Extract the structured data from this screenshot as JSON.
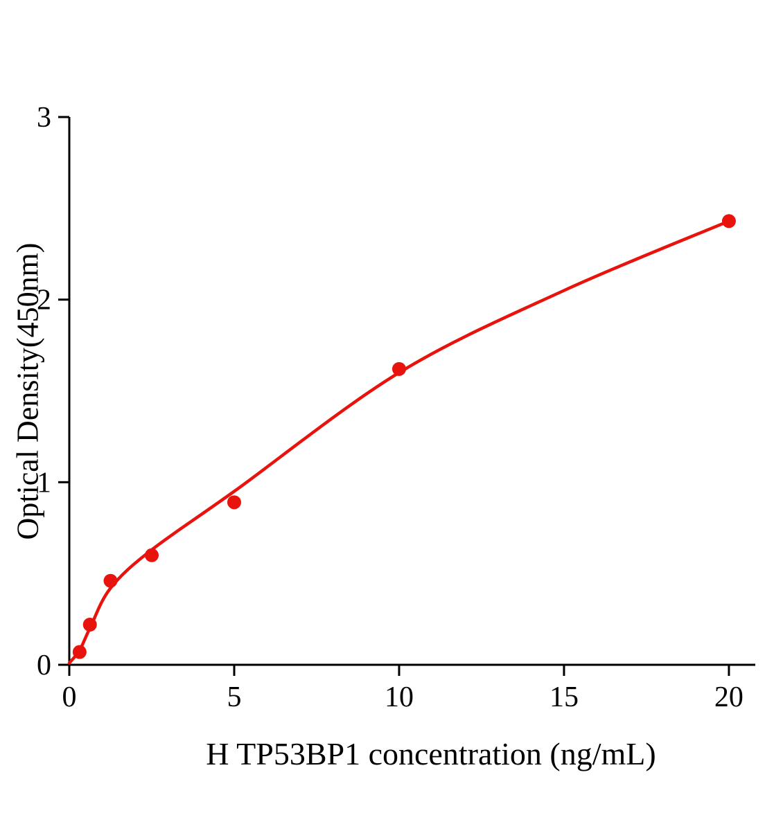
{
  "chart_data": {
    "type": "scatter",
    "title": "",
    "xlabel": "H TP53BP1 concentration (ng/mL)",
    "ylabel": "Optical Density(450nm)",
    "xlim": [
      0,
      20.8
    ],
    "ylim": [
      0,
      3
    ],
    "xticks": [
      0,
      5,
      10,
      15,
      20
    ],
    "yticks": [
      0,
      1,
      2,
      3
    ],
    "grid": false,
    "legend": "none",
    "axis_color": "#000000",
    "series": [
      {
        "name": "H TP53BP1 standard curve",
        "type": "scatter-with-fit-curve",
        "color": "#e8130d",
        "marker": "circle",
        "points": [
          {
            "x": 0.3125,
            "y": 0.07
          },
          {
            "x": 0.625,
            "y": 0.22
          },
          {
            "x": 1.25,
            "y": 0.46
          },
          {
            "x": 2.5,
            "y": 0.6
          },
          {
            "x": 5,
            "y": 0.89
          },
          {
            "x": 10,
            "y": 1.62
          },
          {
            "x": 20,
            "y": 2.43
          }
        ],
        "fit_curve": [
          [
            0,
            0.01
          ],
          [
            0.3125,
            0.08
          ],
          [
            0.625,
            0.2
          ],
          [
            1.25,
            0.42
          ],
          [
            2.5,
            0.63
          ],
          [
            5,
            0.95
          ],
          [
            10,
            1.6
          ],
          [
            15,
            2.05
          ],
          [
            20,
            2.43
          ]
        ]
      }
    ]
  }
}
